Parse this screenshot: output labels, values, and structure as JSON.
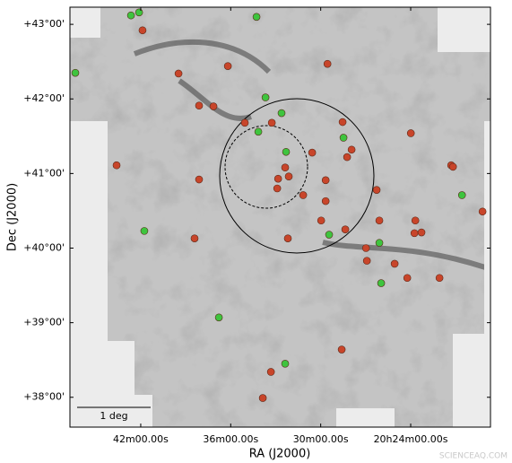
{
  "chart_data": {
    "type": "scatter",
    "xlabel": "RA (J2000)",
    "ylabel": "Dec (J2000)",
    "xlim": [
      46.72,
      18.68
    ],
    "ylim": [
      37.6,
      43.23
    ],
    "xticks": [
      {
        "value": 42,
        "label": "42m00.00s"
      },
      {
        "value": 36,
        "label": "36m00.00s"
      },
      {
        "value": 30,
        "label": "30m00.00s"
      },
      {
        "value": 24,
        "label": "20h24m00.00s"
      }
    ],
    "yticks": [
      {
        "value": 38,
        "label": "+38°00'"
      },
      {
        "value": 39,
        "label": "+39°00'"
      },
      {
        "value": 40,
        "label": "+40°00'"
      },
      {
        "value": 41,
        "label": "+41°00'"
      },
      {
        "value": 42,
        "label": "+42°00'"
      },
      {
        "value": 43,
        "label": "+43°00'"
      }
    ],
    "scale_bar": "1 deg",
    "watermark": "SCIENCEAQ.COM",
    "series": [
      {
        "color": "#c8452a",
        "x": [
          41.88,
          39.48,
          36.19,
          29.55,
          38.11,
          37.15,
          35.06,
          33.26,
          28.54,
          23.99,
          43.61,
          27.94,
          28.24,
          30.57,
          32.37,
          32.13,
          32.84,
          32.9,
          38.11,
          29.67,
          26.27,
          21.3,
          21.18,
          31.17,
          29.67,
          29.97,
          28.36,
          26.09,
          23.69,
          38.41,
          32.19,
          26.98,
          26.92,
          23.75,
          23.28,
          25.07,
          24.23,
          22.08,
          19.21,
          28.6,
          33.32,
          33.86
        ],
        "y": [
          42.92,
          42.34,
          42.44,
          42.47,
          41.91,
          41.9,
          41.68,
          41.68,
          41.69,
          41.54,
          41.11,
          41.32,
          41.22,
          41.28,
          41.08,
          40.96,
          40.93,
          40.8,
          40.92,
          40.91,
          40.78,
          41.11,
          41.09,
          40.71,
          40.63,
          40.37,
          40.25,
          40.37,
          40.37,
          40.13,
          40.13,
          40.0,
          39.83,
          40.2,
          40.21,
          39.79,
          39.6,
          39.6,
          40.49,
          38.64,
          38.34,
          37.99
        ]
      },
      {
        "color": "#3ec43e",
        "x": [
          42.65,
          42.11,
          34.28,
          46.36,
          33.68,
          32.61,
          34.16,
          28.48,
          32.31,
          41.76,
          29.44,
          26.09,
          20.58,
          25.97,
          36.79,
          32.37
        ],
        "y": [
          43.12,
          43.16,
          43.1,
          42.35,
          42.02,
          41.81,
          41.56,
          41.48,
          41.29,
          40.23,
          40.18,
          40.07,
          40.71,
          39.53,
          39.07,
          38.45
        ]
      }
    ]
  }
}
